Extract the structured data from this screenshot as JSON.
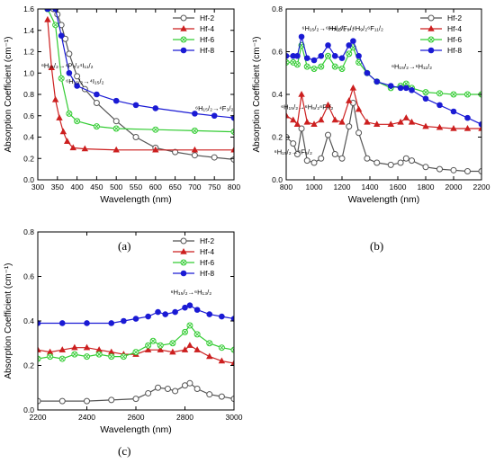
{
  "captions": [
    "(a)",
    "(b)",
    "(c)"
  ],
  "chart_data": [
    {
      "type": "line",
      "panel": "(a)",
      "xlabel": "Wavelength (nm)",
      "ylabel": "Absorption Coefficient (cm⁻¹)",
      "xlim": [
        300,
        800
      ],
      "ylim": [
        0.0,
        1.6
      ],
      "xticks": [
        300,
        350,
        400,
        450,
        500,
        550,
        600,
        650,
        700,
        750,
        800
      ],
      "yticks": [
        0.0,
        0.2,
        0.4,
        0.6,
        0.8,
        1.0,
        1.2,
        1.4,
        1.6
      ],
      "legend": "top-right",
      "annotations": [
        {
          "text": "⁶H₁₅/₂→⁴P₇/₂⁴I₁₁/₂",
          "x": 375,
          "y": 1.05
        },
        {
          "text": "⁶H₁₅/₂→⁴I₁₅/₂",
          "x": 420,
          "y": 0.9
        },
        {
          "text": "⁶H₁₅/₂→⁴F₃/₂",
          "x": 750,
          "y": 0.65
        }
      ],
      "series": [
        {
          "name": "Hf-2",
          "color": "#555555",
          "marker": "circle",
          "x": [
            325,
            340,
            350,
            360,
            370,
            380,
            400,
            420,
            450,
            500,
            550,
            600,
            650,
            700,
            750,
            800
          ],
          "y": [
            1.6,
            1.6,
            1.55,
            1.45,
            1.32,
            1.18,
            0.97,
            0.85,
            0.72,
            0.55,
            0.4,
            0.3,
            0.26,
            0.23,
            0.21,
            0.19
          ]
        },
        {
          "name": "Hf-4",
          "color": "#cc1f1f",
          "marker": "triangle",
          "x": [
            325,
            335,
            345,
            355,
            365,
            375,
            390,
            420,
            500,
            600,
            700,
            800
          ],
          "y": [
            1.5,
            1.05,
            0.75,
            0.58,
            0.45,
            0.36,
            0.3,
            0.29,
            0.28,
            0.28,
            0.28,
            0.28
          ]
        },
        {
          "name": "Hf-6",
          "color": "#33cc33",
          "marker": "circle-x",
          "x": [
            325,
            345,
            360,
            380,
            400,
            450,
            500,
            600,
            700,
            800
          ],
          "y": [
            1.6,
            1.45,
            0.95,
            0.62,
            0.55,
            0.5,
            0.48,
            0.47,
            0.46,
            0.45
          ]
        },
        {
          "name": "Hf-8",
          "color": "#1a1ad4",
          "marker": "filled-circle",
          "x": [
            325,
            345,
            360,
            380,
            400,
            450,
            500,
            550,
            600,
            700,
            750,
            800
          ],
          "y": [
            1.6,
            1.6,
            1.35,
            1.0,
            0.88,
            0.8,
            0.74,
            0.7,
            0.67,
            0.62,
            0.6,
            0.58
          ]
        }
      ]
    },
    {
      "type": "line",
      "panel": "(b)",
      "xlabel": "Wavelength (nm)",
      "ylabel": "Absorption Coefficient (cm⁻¹)",
      "xlim": [
        800,
        2200
      ],
      "ylim": [
        0.0,
        0.8
      ],
      "xticks": [
        800,
        1000,
        1200,
        1400,
        1600,
        1800,
        2000,
        2200
      ],
      "yticks": [
        0.0,
        0.2,
        0.4,
        0.6,
        0.8
      ],
      "legend": "top-right",
      "annotations": [
        {
          "text": "⁶H₁₅/₂→⁶H₇/₂⁶F₉/₂",
          "x": 1100,
          "y": 0.7
        },
        {
          "text": "⁶H₁₅/₂→⁶H₉/₂⁶F₁₁/₂",
          "x": 1300,
          "y": 0.7
        },
        {
          "text": "⁶H₁₅/₂→⁶H₁₁/₂",
          "x": 1700,
          "y": 0.52
        },
        {
          "text": "⁶H₁₅/₂→⁶H₅/₂⁶F₇/₂",
          "x": 950,
          "y": 0.33
        },
        {
          "text": "⁶H₁₅/₂→⁶F₅/₂",
          "x": 850,
          "y": 0.12
        }
      ],
      "series": [
        {
          "name": "Hf-2",
          "color": "#555555",
          "marker": "circle",
          "x": [
            800,
            850,
            880,
            910,
            950,
            1000,
            1050,
            1100,
            1150,
            1200,
            1250,
            1280,
            1320,
            1380,
            1450,
            1550,
            1620,
            1660,
            1700,
            1800,
            1900,
            2000,
            2100,
            2200
          ],
          "y": [
            0.2,
            0.17,
            0.12,
            0.24,
            0.09,
            0.08,
            0.1,
            0.21,
            0.12,
            0.1,
            0.25,
            0.36,
            0.22,
            0.1,
            0.08,
            0.07,
            0.08,
            0.1,
            0.09,
            0.06,
            0.05,
            0.045,
            0.04,
            0.04
          ]
        },
        {
          "name": "Hf-4",
          "color": "#cc1f1f",
          "marker": "triangle",
          "x": [
            800,
            850,
            880,
            910,
            950,
            1000,
            1050,
            1100,
            1150,
            1200,
            1250,
            1280,
            1320,
            1380,
            1450,
            1550,
            1620,
            1660,
            1700,
            1800,
            1900,
            2000,
            2100,
            2200
          ],
          "y": [
            0.3,
            0.28,
            0.26,
            0.4,
            0.27,
            0.26,
            0.28,
            0.35,
            0.28,
            0.27,
            0.37,
            0.43,
            0.33,
            0.27,
            0.26,
            0.26,
            0.27,
            0.29,
            0.27,
            0.25,
            0.245,
            0.24,
            0.24,
            0.24
          ]
        },
        {
          "name": "Hf-6",
          "color": "#33cc33",
          "marker": "circle-x",
          "x": [
            800,
            850,
            880,
            910,
            950,
            1000,
            1050,
            1100,
            1150,
            1200,
            1250,
            1280,
            1320,
            1380,
            1450,
            1550,
            1620,
            1660,
            1700,
            1800,
            1900,
            2000,
            2100,
            2200
          ],
          "y": [
            0.55,
            0.55,
            0.54,
            0.63,
            0.53,
            0.52,
            0.53,
            0.58,
            0.53,
            0.52,
            0.59,
            0.62,
            0.55,
            0.5,
            0.46,
            0.43,
            0.44,
            0.45,
            0.43,
            0.41,
            0.405,
            0.4,
            0.4,
            0.4
          ]
        },
        {
          "name": "Hf-8",
          "color": "#1a1ad4",
          "marker": "filled-circle",
          "x": [
            800,
            850,
            880,
            910,
            950,
            1000,
            1050,
            1100,
            1150,
            1200,
            1250,
            1280,
            1320,
            1380,
            1450,
            1550,
            1620,
            1660,
            1700,
            1800,
            1900,
            2000,
            2100,
            2200
          ],
          "y": [
            0.58,
            0.58,
            0.58,
            0.67,
            0.57,
            0.56,
            0.58,
            0.63,
            0.58,
            0.57,
            0.63,
            0.65,
            0.58,
            0.5,
            0.46,
            0.44,
            0.43,
            0.43,
            0.42,
            0.38,
            0.35,
            0.32,
            0.29,
            0.26
          ]
        }
      ]
    },
    {
      "type": "line",
      "panel": "(c)",
      "xlabel": "Wavelength (nm)",
      "ylabel": "Absorption Coefficient (cm⁻¹)",
      "xlim": [
        2200,
        3000
      ],
      "ylim": [
        0.0,
        0.8
      ],
      "xticks": [
        2200,
        2400,
        2600,
        2800,
        3000
      ],
      "yticks": [
        0.0,
        0.2,
        0.4,
        0.6,
        0.8
      ],
      "legend": "top-right",
      "annotations": [
        {
          "text": "⁶H₁₅/₂→⁶H₁₃/₂",
          "x": 2825,
          "y": 0.52
        }
      ],
      "series": [
        {
          "name": "Hf-2",
          "color": "#555555",
          "marker": "circle",
          "x": [
            2200,
            2300,
            2400,
            2500,
            2600,
            2650,
            2690,
            2730,
            2760,
            2800,
            2820,
            2850,
            2900,
            2950,
            3000
          ],
          "y": [
            0.04,
            0.04,
            0.04,
            0.045,
            0.05,
            0.075,
            0.1,
            0.095,
            0.085,
            0.11,
            0.12,
            0.095,
            0.07,
            0.06,
            0.05
          ]
        },
        {
          "name": "Hf-4",
          "color": "#cc1f1f",
          "marker": "triangle",
          "x": [
            2200,
            2250,
            2300,
            2350,
            2400,
            2450,
            2500,
            2550,
            2600,
            2650,
            2700,
            2750,
            2800,
            2820,
            2850,
            2900,
            2950,
            3000
          ],
          "y": [
            0.27,
            0.26,
            0.27,
            0.28,
            0.28,
            0.27,
            0.26,
            0.25,
            0.25,
            0.27,
            0.27,
            0.26,
            0.27,
            0.29,
            0.27,
            0.24,
            0.22,
            0.21
          ]
        },
        {
          "name": "Hf-6",
          "color": "#33cc33",
          "marker": "circle-x",
          "x": [
            2200,
            2250,
            2300,
            2350,
            2400,
            2450,
            2500,
            2550,
            2600,
            2650,
            2670,
            2700,
            2750,
            2800,
            2820,
            2850,
            2900,
            2950,
            3000
          ],
          "y": [
            0.23,
            0.24,
            0.23,
            0.25,
            0.24,
            0.25,
            0.24,
            0.24,
            0.26,
            0.29,
            0.31,
            0.29,
            0.3,
            0.35,
            0.38,
            0.34,
            0.3,
            0.28,
            0.27
          ]
        },
        {
          "name": "Hf-8",
          "color": "#1a1ad4",
          "marker": "filled-circle",
          "x": [
            2200,
            2300,
            2400,
            2500,
            2550,
            2600,
            2650,
            2690,
            2720,
            2760,
            2800,
            2820,
            2850,
            2900,
            2950,
            3000
          ],
          "y": [
            0.39,
            0.39,
            0.39,
            0.39,
            0.4,
            0.41,
            0.42,
            0.44,
            0.43,
            0.44,
            0.46,
            0.47,
            0.45,
            0.43,
            0.42,
            0.41
          ]
        }
      ]
    }
  ]
}
